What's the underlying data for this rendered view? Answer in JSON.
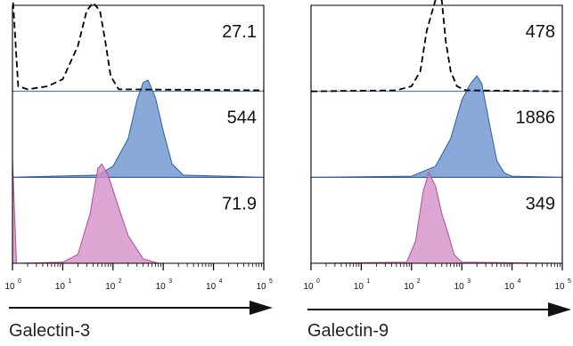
{
  "chart_data": [
    {
      "type": "area",
      "xlabel": "Galectin-3",
      "x_scale": "log",
      "xlim": [
        1,
        100000
      ],
      "xtick_labels": [
        {
          "base": "10",
          "exp": "0"
        },
        {
          "base": "10",
          "exp": "1"
        },
        {
          "base": "10",
          "exp": "2"
        },
        {
          "base": "10",
          "exp": "3"
        },
        {
          "base": "10",
          "exp": "4"
        },
        {
          "base": "10",
          "exp": "5"
        }
      ],
      "series": [
        {
          "style": "dashed",
          "color": "#000000",
          "value_label": "27.1",
          "peak_x": 40,
          "peak_height": 0.88,
          "points": [
            [
              1,
              0.98
            ],
            [
              1.3,
              0.05
            ],
            [
              2,
              0.02
            ],
            [
              5,
              0.05
            ],
            [
              10,
              0.12
            ],
            [
              20,
              0.45
            ],
            [
              30,
              0.8
            ],
            [
              40,
              0.88
            ],
            [
              55,
              0.8
            ],
            [
              70,
              0.5
            ],
            [
              90,
              0.15
            ],
            [
              130,
              0.02
            ],
            [
              100000,
              0.01
            ]
          ]
        },
        {
          "style": "filled",
          "color": "#6f96cf",
          "value_label": "544",
          "peak_x": 450,
          "peak_height": 0.88,
          "points": [
            [
              1,
              0
            ],
            [
              50,
              0.02
            ],
            [
              100,
              0.1
            ],
            [
              200,
              0.35
            ],
            [
              300,
              0.7
            ],
            [
              400,
              0.86
            ],
            [
              500,
              0.88
            ],
            [
              700,
              0.72
            ],
            [
              1000,
              0.42
            ],
            [
              1500,
              0.12
            ],
            [
              2500,
              0.02
            ],
            [
              100000,
              0
            ]
          ]
        },
        {
          "style": "filled",
          "color": "#d48cc4",
          "value_label": "71.9",
          "peak_x": 55,
          "peak_height": 0.9,
          "points": [
            [
              1,
              0.95
            ],
            [
              1.2,
              0
            ],
            [
              10,
              0.01
            ],
            [
              20,
              0.08
            ],
            [
              35,
              0.45
            ],
            [
              50,
              0.86
            ],
            [
              60,
              0.9
            ],
            [
              80,
              0.8
            ],
            [
              120,
              0.55
            ],
            [
              200,
              0.25
            ],
            [
              400,
              0.04
            ],
            [
              800,
              0
            ],
            [
              100000,
              0
            ]
          ]
        }
      ]
    },
    {
      "type": "area",
      "xlabel": "Galectin-9",
      "x_scale": "log",
      "xlim": [
        1,
        100000
      ],
      "xtick_labels": [
        {
          "base": "10",
          "exp": "0"
        },
        {
          "base": "10",
          "exp": "1"
        },
        {
          "base": "10",
          "exp": "2"
        },
        {
          "base": "10",
          "exp": "3"
        },
        {
          "base": "10",
          "exp": "4"
        },
        {
          "base": "10",
          "exp": "5"
        }
      ],
      "series": [
        {
          "style": "dashed",
          "color": "#000000",
          "value_label": "478",
          "peak_x": 330,
          "peak_height": 0.98,
          "points": [
            [
              1,
              0
            ],
            [
              50,
              0.01
            ],
            [
              100,
              0.05
            ],
            [
              150,
              0.2
            ],
            [
              200,
              0.6
            ],
            [
              260,
              0.8
            ],
            [
              330,
              0.98
            ],
            [
              400,
              0.9
            ],
            [
              480,
              0.5
            ],
            [
              600,
              0.2
            ],
            [
              800,
              0.05
            ],
            [
              1200,
              0.01
            ],
            [
              100000,
              0
            ]
          ]
        },
        {
          "style": "filled",
          "color": "#6f96cf",
          "value_label": "1886",
          "peak_x": 2000,
          "peak_height": 0.92,
          "points": [
            [
              1,
              0
            ],
            [
              100,
              0.01
            ],
            [
              300,
              0.1
            ],
            [
              600,
              0.35
            ],
            [
              1000,
              0.7
            ],
            [
              1500,
              0.85
            ],
            [
              2000,
              0.92
            ],
            [
              2500,
              0.85
            ],
            [
              3500,
              0.5
            ],
            [
              5000,
              0.15
            ],
            [
              7000,
              0.04
            ],
            [
              10000,
              0.01
            ],
            [
              100000,
              0
            ]
          ]
        },
        {
          "style": "filled",
          "color": "#d48cc4",
          "value_label": "349",
          "peak_x": 220,
          "peak_height": 0.82,
          "points": [
            [
              1,
              0
            ],
            [
              80,
              0.01
            ],
            [
              120,
              0.2
            ],
            [
              170,
              0.65
            ],
            [
              220,
              0.82
            ],
            [
              300,
              0.7
            ],
            [
              400,
              0.45
            ],
            [
              550,
              0.25
            ],
            [
              700,
              0.08
            ],
            [
              1000,
              0.01
            ],
            [
              100000,
              0
            ]
          ]
        }
      ]
    }
  ]
}
